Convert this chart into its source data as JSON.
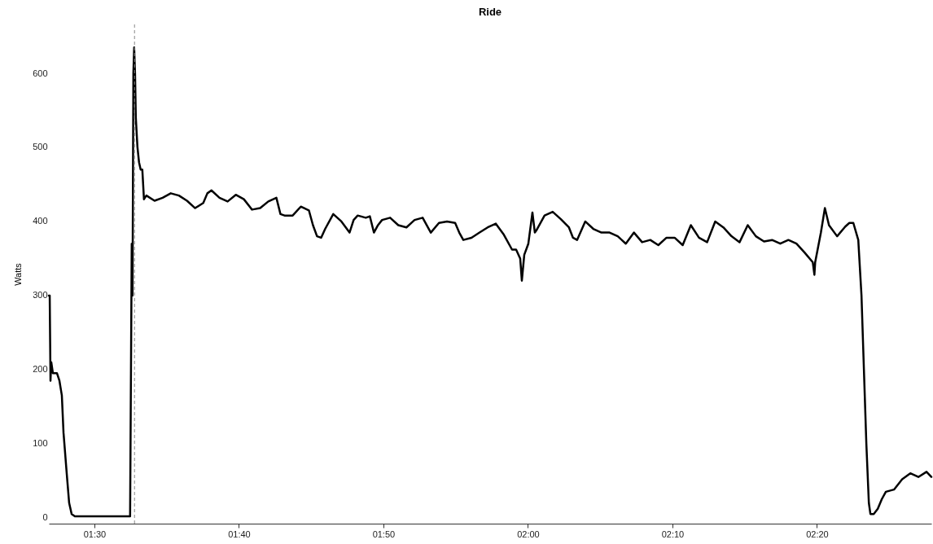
{
  "chart_data": {
    "type": "line",
    "title": "Ride",
    "ylabel": "Watts",
    "xlim": [
      1.4475,
      2.4653
    ],
    "ylim": [
      -8,
      666
    ],
    "xticks": [
      {
        "value": 1.5,
        "label": "01:30"
      },
      {
        "value": 1.6667,
        "label": "01:40"
      },
      {
        "value": 1.8333,
        "label": "01:50"
      },
      {
        "value": 2.0,
        "label": "02:00"
      },
      {
        "value": 2.1667,
        "label": "02:10"
      },
      {
        "value": 2.3333,
        "label": "02:20"
      }
    ],
    "yticks": [
      0,
      100,
      200,
      300,
      400,
      500,
      600
    ],
    "grid": false,
    "marker": "none",
    "line_style": "solid",
    "ref_lines": [
      {
        "axis": "x",
        "value": 1.5463,
        "color": "#888888",
        "line_style": "dashed"
      }
    ],
    "series": [
      {
        "color": "#000000",
        "x": [
          1.4475,
          1.4485,
          1.4494,
          1.4503,
          1.4522,
          1.4569,
          1.4597,
          1.4625,
          1.4644,
          1.4681,
          1.4709,
          1.4738,
          1.4775,
          1.5412,
          1.5431,
          1.544,
          1.545,
          1.5459,
          1.5469,
          1.5478,
          1.5497,
          1.5515,
          1.5534,
          1.5553,
          1.5572,
          1.56,
          1.5694,
          1.5787,
          1.5881,
          1.5975,
          1.6068,
          1.6162,
          1.6256,
          1.6303,
          1.635,
          1.6443,
          1.6537,
          1.6631,
          1.6724,
          1.6818,
          1.6912,
          1.7006,
          1.7099,
          1.7146,
          1.7193,
          1.7287,
          1.7381,
          1.7474,
          1.7521,
          1.7568,
          1.7615,
          1.7662,
          1.7755,
          1.7849,
          1.7943,
          1.799,
          1.8037,
          1.813,
          1.8177,
          1.8224,
          1.8271,
          1.8318,
          1.8411,
          1.8505,
          1.8599,
          1.8693,
          1.8786,
          1.888,
          1.8974,
          1.9067,
          1.9161,
          1.9208,
          1.9255,
          1.9349,
          1.9442,
          1.9536,
          1.963,
          1.9723,
          1.9817,
          1.9864,
          1.9911,
          1.993,
          1.9958,
          2.0005,
          2.0052,
          2.008,
          2.0098,
          2.0192,
          2.0286,
          2.038,
          2.0473,
          2.052,
          2.0567,
          2.0661,
          2.0754,
          2.0848,
          2.0942,
          2.1036,
          2.1129,
          2.1223,
          2.1317,
          2.1411,
          2.1504,
          2.1598,
          2.1692,
          2.1785,
          2.1879,
          2.1973,
          2.2067,
          2.216,
          2.2254,
          2.2348,
          2.2441,
          2.2535,
          2.2629,
          2.2723,
          2.2816,
          2.291,
          2.3004,
          2.3097,
          2.3191,
          2.3285,
          2.3304,
          2.3313,
          2.3379,
          2.3425,
          2.3472,
          2.3566,
          2.366,
          2.3707,
          2.3753,
          2.381,
          2.3847,
          2.3875,
          2.3903,
          2.3932,
          2.395,
          2.3988,
          2.4035,
          2.4081,
          2.4128,
          2.4222,
          2.4316,
          2.441,
          2.4503,
          2.4597,
          2.4653
        ],
        "values": [
          300,
          300,
          185,
          210,
          195,
          195,
          185,
          165,
          115,
          60,
          20,
          5,
          2,
          2,
          370,
          300,
          600,
          635,
          600,
          540,
          500,
          480,
          470,
          470,
          430,
          435,
          428,
          432,
          438,
          435,
          428,
          418,
          425,
          438,
          442,
          432,
          427,
          436,
          430,
          416,
          418,
          427,
          432,
          410,
          408,
          408,
          420,
          415,
          395,
          380,
          378,
          390,
          410,
          400,
          385,
          402,
          408,
          405,
          407,
          385,
          395,
          402,
          405,
          395,
          392,
          402,
          405,
          385,
          398,
          400,
          398,
          385,
          375,
          378,
          385,
          392,
          397,
          382,
          362,
          362,
          350,
          320,
          355,
          370,
          412,
          385,
          388,
          408,
          413,
          403,
          392,
          378,
          375,
          400,
          390,
          385,
          385,
          380,
          370,
          385,
          372,
          375,
          368,
          378,
          378,
          368,
          395,
          378,
          372,
          400,
          392,
          380,
          372,
          395,
          380,
          373,
          375,
          370,
          375,
          370,
          358,
          345,
          328,
          345,
          385,
          418,
          395,
          380,
          393,
          398,
          398,
          375,
          300,
          200,
          100,
          20,
          5,
          5,
          12,
          25,
          35,
          38,
          52,
          60,
          55,
          62,
          55
        ]
      }
    ]
  }
}
